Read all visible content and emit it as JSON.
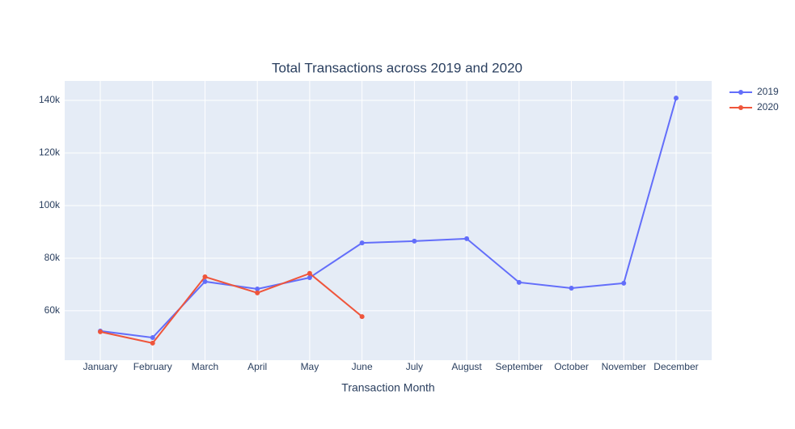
{
  "chart_data": {
    "type": "line",
    "title": "Total Transactions across 2019 and 2020",
    "x_label": "Transaction Month",
    "categories": [
      "January",
      "February",
      "March",
      "April",
      "May",
      "June",
      "July",
      "August",
      "September",
      "October",
      "November",
      "December"
    ],
    "series": [
      {
        "name": "2019",
        "color": "#636efa",
        "values": [
          52300,
          49800,
          71100,
          68300,
          72600,
          85800,
          86500,
          87400,
          70800,
          68600,
          70500,
          140900
        ]
      },
      {
        "name": "2020",
        "color": "#ef553b",
        "values": [
          52000,
          47700,
          72900,
          66800,
          74200,
          57800,
          null,
          null,
          null,
          null,
          null,
          null
        ]
      }
    ],
    "ylim": [
      41200,
      147400
    ],
    "yticks": [
      {
        "value": 60000,
        "label": "60k"
      },
      {
        "value": 80000,
        "label": "80k"
      },
      {
        "value": 100000,
        "label": "100k"
      },
      {
        "value": 120000,
        "label": "120k"
      },
      {
        "value": 140000,
        "label": "140k"
      }
    ],
    "grid": true,
    "legend": "top-right"
  }
}
